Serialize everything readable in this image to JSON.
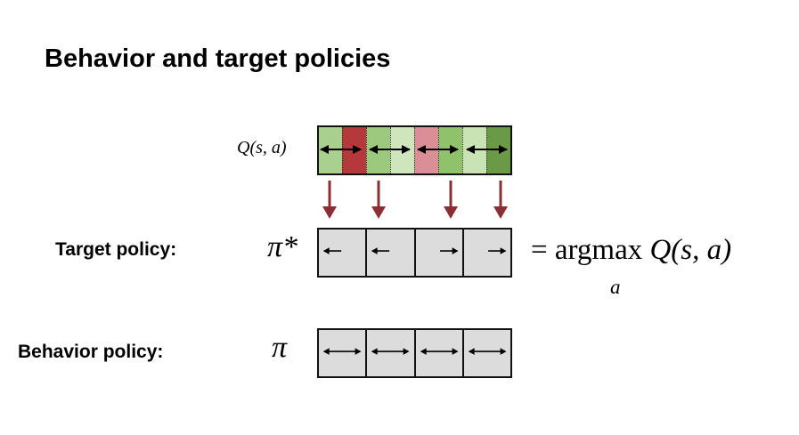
{
  "title": "Behavior and target policies",
  "q_label": "Q(s, a)",
  "target": {
    "label": "Target policy:",
    "symbol": "π*",
    "equation_prefix": "= argmax",
    "equation_func": "Q(s, a)",
    "subscript": "a",
    "actions": [
      "left",
      "left",
      "right",
      "right"
    ]
  },
  "behavior": {
    "label": "Behavior policy:",
    "symbol": "π",
    "actions": [
      "both",
      "both",
      "both",
      "both"
    ]
  },
  "q_cells": [
    {
      "color": "#a9d08e",
      "highlight": "left"
    },
    {
      "color": "#b5393c",
      "highlight": "none"
    },
    {
      "color": "#9cc97d",
      "highlight": "left"
    },
    {
      "color": "#cfe6bd",
      "highlight": "none"
    },
    {
      "color": "#d98f95",
      "highlight": "none"
    },
    {
      "color": "#8fc26a",
      "highlight": "right"
    },
    {
      "color": "#c9e3b5",
      "highlight": "none"
    },
    {
      "color": "#6a9a45",
      "highlight": "right"
    }
  ],
  "colors": {
    "down_arrow": "#8c2f35",
    "grid_fill": "#dcdcdc",
    "border": "#111111"
  }
}
